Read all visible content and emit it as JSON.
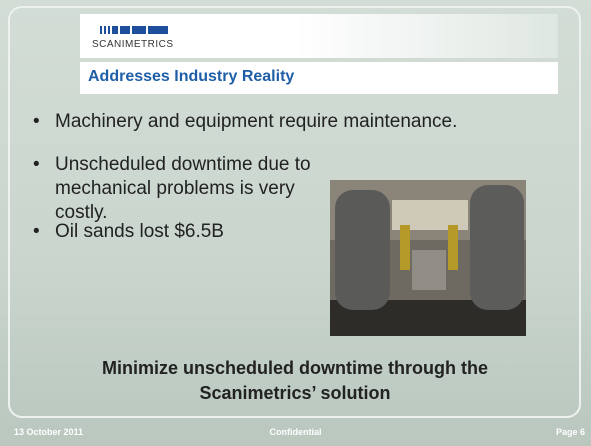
{
  "logo": "SCANIMETRICS",
  "title": "Addresses Industry Reality",
  "bullets": [
    "Machinery and equipment require maintenance.",
    "Unscheduled downtime due to mechanical problems is very costly.",
    "Oil sands lost $6.5B"
  ],
  "conclusion": "Minimize unscheduled downtime through the Scanimetrics’ solution",
  "footer": {
    "date": "13 October 2011",
    "center": "Confidential",
    "page": "Page 6"
  }
}
